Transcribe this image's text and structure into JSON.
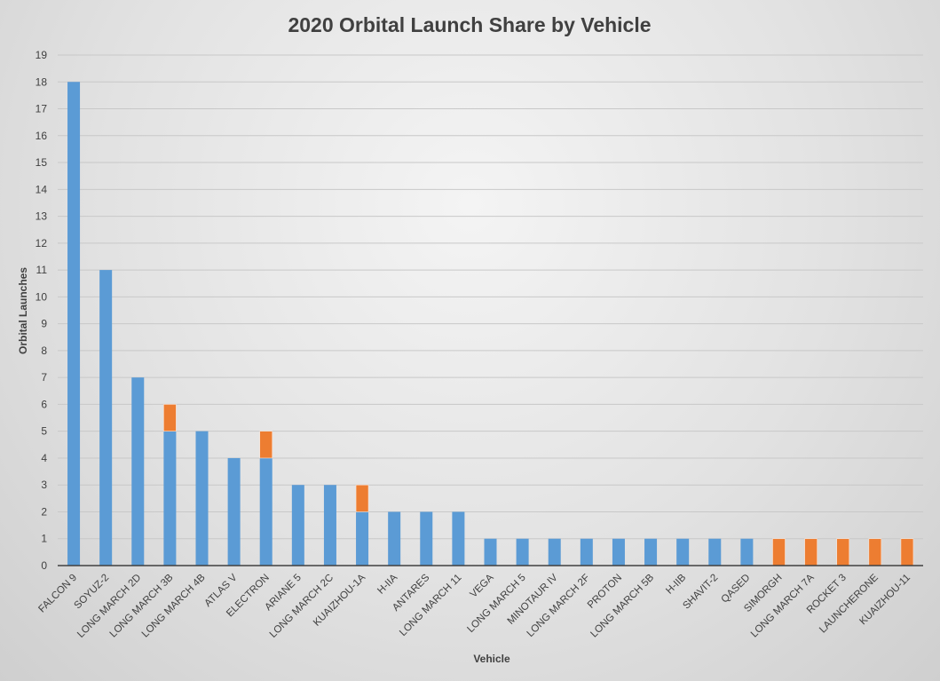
{
  "chart_data": {
    "type": "bar",
    "stacked": true,
    "title": "2020 Orbital Launch Share by Vehicle",
    "xlabel": "Vehicle",
    "ylabel": "Orbital Launches",
    "ylim": [
      0,
      19
    ],
    "yticks": [
      0,
      1,
      2,
      3,
      4,
      5,
      6,
      7,
      8,
      9,
      10,
      11,
      12,
      13,
      14,
      15,
      16,
      17,
      18,
      19
    ],
    "grid": true,
    "legend": "none",
    "categories": [
      "FALCON 9",
      "SOYUZ-2",
      "LONG MARCH 2D",
      "LONG MARCH 3B",
      "LONG MARCH 4B",
      "ATLAS V",
      "ELECTRON",
      "ARIANE 5",
      "LONG MARCH 2C",
      "KUAIZHOU-1A",
      "H-IIA",
      "ANTARES",
      "LONG MARCH 11",
      "VEGA",
      "LONG MARCH 5",
      "MINOTAUR IV",
      "LONG MARCH 2F",
      "PROTON",
      "LONG MARCH 5B",
      "H-IIB",
      "SHAVIT-2",
      "QASED",
      "SIMORGH",
      "LONG MARCH 7A",
      "ROCKET 3",
      "LAUNCHERONE",
      "KUAIZHOU-11"
    ],
    "series": [
      {
        "color": "#5b9bd5",
        "values": [
          18,
          11,
          7,
          5,
          5,
          4,
          4,
          3,
          3,
          2,
          2,
          2,
          2,
          1,
          1,
          1,
          1,
          1,
          1,
          1,
          1,
          1,
          0,
          0,
          0,
          0,
          0
        ]
      },
      {
        "color": "#ed7d31",
        "values": [
          0,
          0,
          0,
          1,
          0,
          0,
          1,
          0,
          0,
          1,
          0,
          0,
          0,
          0,
          0,
          0,
          0,
          0,
          0,
          0,
          0,
          0,
          1,
          1,
          1,
          1,
          1
        ]
      }
    ]
  }
}
